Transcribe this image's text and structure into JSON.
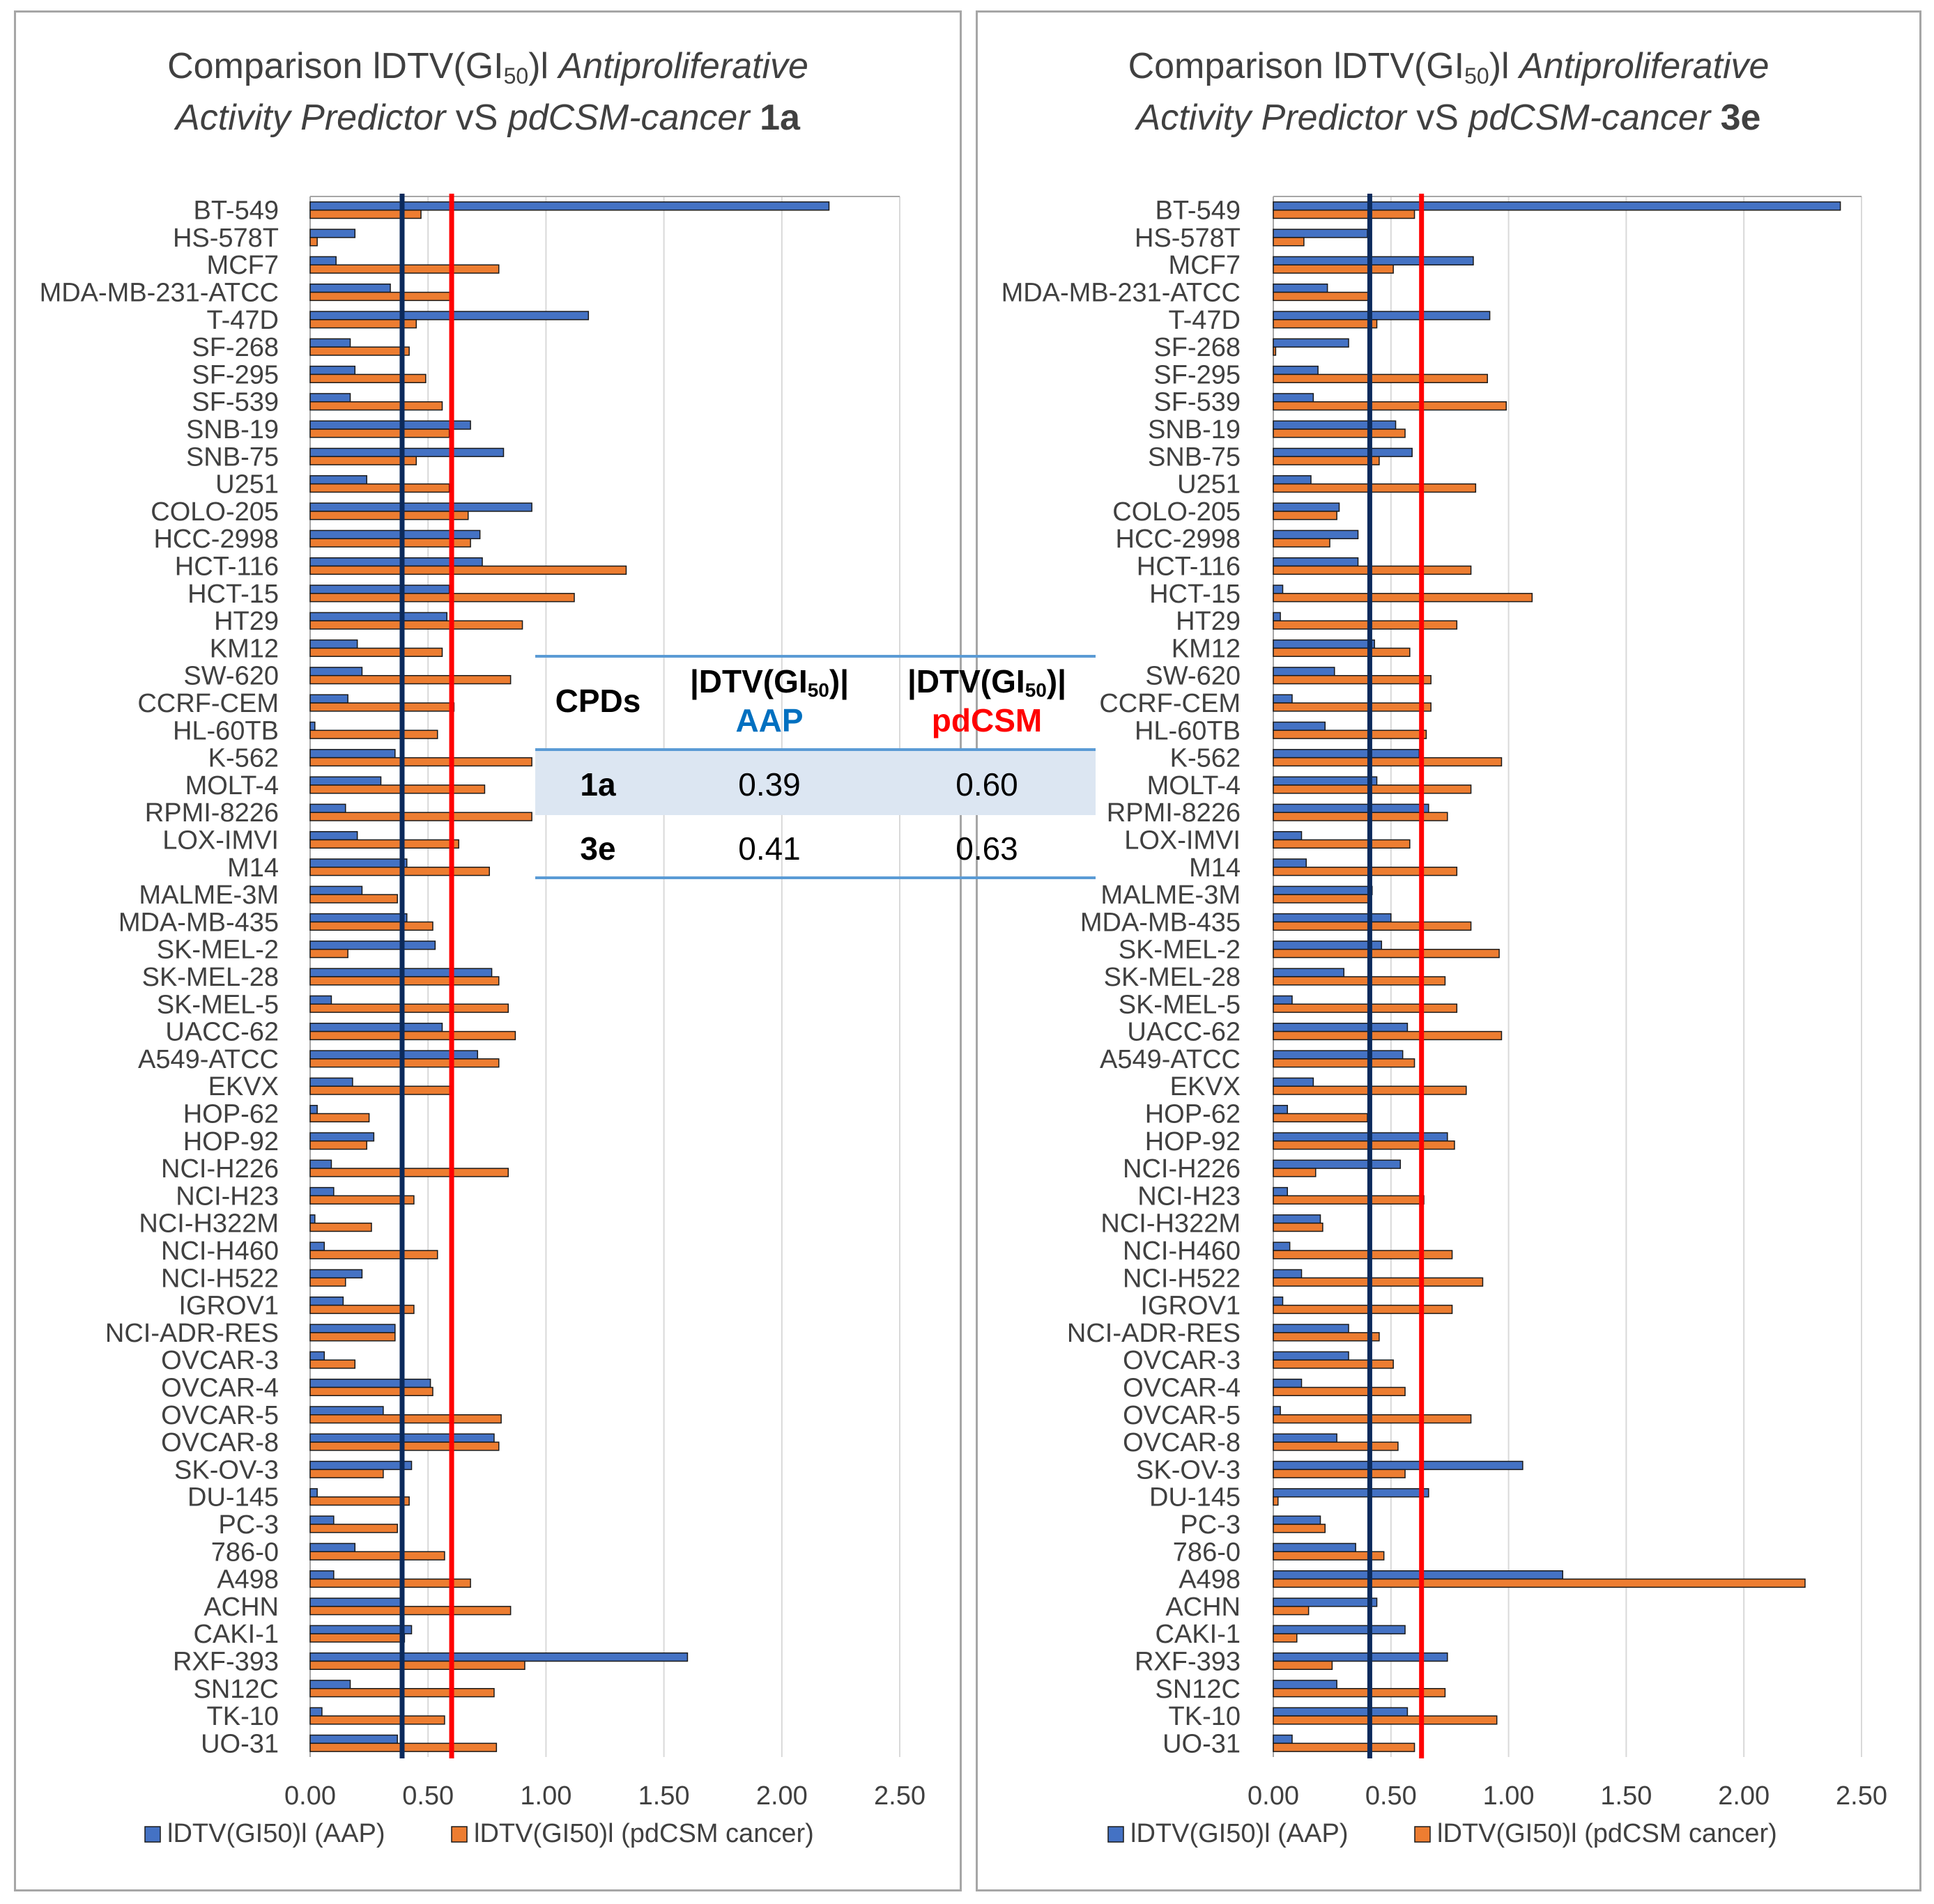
{
  "charts": [
    {
      "title_prefix": "Comparison ",
      "title_dtv": "lDTV(GI",
      "title_sub": "50",
      "title_close": ")l ",
      "title_italic1": "Antiproliferative",
      "title_italic2": "Activity Predictor",
      "title_vs": " vS ",
      "title_italic3": "pdCSM-cancer",
      "title_compound": "1a",
      "legend_aap": "lDTV(GI50)l (AAP)",
      "legend_pdcsm": "lDTV(GI50)l (pdCSM cancer)"
    },
    {
      "title_prefix": "Comparison ",
      "title_dtv": "lDTV(GI",
      "title_sub": "50",
      "title_close": ")l ",
      "title_italic1": "Antiproliferative",
      "title_italic2": "Activity Predictor",
      "title_vs": " vS ",
      "title_italic3": "pdCSM-cancer",
      "title_compound": "3e",
      "legend_aap": "lDTV(GI50)l (AAP)",
      "legend_pdcsm": "lDTV(GI50)l (pdCSM cancer)"
    }
  ],
  "chart_data": [
    {
      "type": "bar",
      "orientation": "horizontal",
      "compound": "1a",
      "xlim": [
        0,
        2.5
      ],
      "xticks": [
        "0.00",
        "0.50",
        "1.00",
        "1.50",
        "2.00",
        "2.50"
      ],
      "categories": [
        "BT-549",
        "HS-578T",
        "MCF7",
        "MDA-MB-231-ATCC",
        "T-47D",
        "SF-268",
        "SF-295",
        "SF-539",
        "SNB-19",
        "SNB-75",
        "U251",
        "COLO-205",
        "HCC-2998",
        "HCT-116",
        "HCT-15",
        "HT29",
        "KM12",
        "SW-620",
        "CCRF-CEM",
        "HL-60TB",
        "K-562",
        "MOLT-4",
        "RPMI-8226",
        "LOX-IMVI",
        "M14",
        "MALME-3M",
        "MDA-MB-435",
        "SK-MEL-2",
        "SK-MEL-28",
        "SK-MEL-5",
        "UACC-62",
        "A549-ATCC",
        "EKVX",
        "HOP-62",
        "HOP-92",
        "NCI-H226",
        "NCI-H23",
        "NCI-H322M",
        "NCI-H460",
        "NCI-H522",
        "IGROV1",
        "NCI-ADR-RES",
        "OVCAR-3",
        "OVCAR-4",
        "OVCAR-5",
        "OVCAR-8",
        "SK-OV-3",
        "DU-145",
        "PC-3",
        "786-0",
        "A498",
        "ACHN",
        "CAKI-1",
        "RXF-393",
        "SN12C",
        "TK-10",
        "UO-31"
      ],
      "series": [
        {
          "name": "lDTV(GI50)l (AAP)",
          "color": "#4472c4",
          "values": [
            2.2,
            0.19,
            0.11,
            0.34,
            1.18,
            0.17,
            0.19,
            0.17,
            0.68,
            0.82,
            0.24,
            0.94,
            0.72,
            0.73,
            0.59,
            0.58,
            0.2,
            0.22,
            0.16,
            0.02,
            0.36,
            0.3,
            0.15,
            0.2,
            0.41,
            0.22,
            0.41,
            0.53,
            0.77,
            0.09,
            0.56,
            0.71,
            0.18,
            0.03,
            0.27,
            0.09,
            0.1,
            0.02,
            0.06,
            0.22,
            0.14,
            0.36,
            0.06,
            0.51,
            0.31,
            0.78,
            0.43,
            0.03,
            0.1,
            0.19,
            0.1,
            0.39,
            0.43,
            1.6,
            0.17,
            0.05,
            0.37
          ]
        },
        {
          "name": "lDTV(GI50)l (pdCSM cancer)",
          "color": "#ed7d31",
          "values": [
            0.47,
            0.03,
            0.8,
            0.6,
            0.45,
            0.42,
            0.49,
            0.56,
            0.59,
            0.45,
            0.59,
            0.67,
            0.68,
            1.34,
            1.12,
            0.9,
            0.56,
            0.85,
            0.61,
            0.54,
            0.94,
            0.74,
            0.94,
            0.63,
            0.76,
            0.37,
            0.52,
            0.16,
            0.8,
            0.84,
            0.87,
            0.8,
            0.6,
            0.25,
            0.24,
            0.84,
            0.44,
            0.26,
            0.54,
            0.15,
            0.44,
            0.36,
            0.19,
            0.52,
            0.81,
            0.8,
            0.31,
            0.42,
            0.37,
            0.57,
            0.68,
            0.85,
            0.4,
            0.91,
            0.78,
            0.57,
            0.79
          ]
        }
      ],
      "reference_lines": [
        {
          "name": "AAP mean",
          "value": 0.39,
          "color": "#0b2a5c"
        },
        {
          "name": "pdCSM mean",
          "value": 0.6,
          "color": "#ff0000"
        }
      ]
    },
    {
      "type": "bar",
      "orientation": "horizontal",
      "compound": "3e",
      "xlim": [
        0,
        2.5
      ],
      "xticks": [
        "0.00",
        "0.50",
        "1.00",
        "1.50",
        "2.00",
        "2.50"
      ],
      "categories": [
        "BT-549",
        "HS-578T",
        "MCF7",
        "MDA-MB-231-ATCC",
        "T-47D",
        "SF-268",
        "SF-295",
        "SF-539",
        "SNB-19",
        "SNB-75",
        "U251",
        "COLO-205",
        "HCC-2998",
        "HCT-116",
        "HCT-15",
        "HT29",
        "KM12",
        "SW-620",
        "CCRF-CEM",
        "HL-60TB",
        "K-562",
        "MOLT-4",
        "RPMI-8226",
        "LOX-IMVI",
        "M14",
        "MALME-3M",
        "MDA-MB-435",
        "SK-MEL-2",
        "SK-MEL-28",
        "SK-MEL-5",
        "UACC-62",
        "A549-ATCC",
        "EKVX",
        "HOP-62",
        "HOP-92",
        "NCI-H226",
        "NCI-H23",
        "NCI-H322M",
        "NCI-H460",
        "NCI-H522",
        "IGROV1",
        "NCI-ADR-RES",
        "OVCAR-3",
        "OVCAR-4",
        "OVCAR-5",
        "OVCAR-8",
        "SK-OV-3",
        "DU-145",
        "PC-3",
        "786-0",
        "A498",
        "ACHN",
        "CAKI-1",
        "RXF-393",
        "SN12C",
        "TK-10",
        "UO-31"
      ],
      "series": [
        {
          "name": "lDTV(GI50)l (AAP)",
          "color": "#4472c4",
          "values": [
            2.41,
            0.4,
            0.85,
            0.23,
            0.92,
            0.32,
            0.19,
            0.17,
            0.52,
            0.59,
            0.16,
            0.28,
            0.36,
            0.36,
            0.04,
            0.03,
            0.43,
            0.26,
            0.08,
            0.22,
            0.62,
            0.44,
            0.66,
            0.12,
            0.14,
            0.42,
            0.5,
            0.46,
            0.3,
            0.08,
            0.57,
            0.55,
            0.17,
            0.06,
            0.74,
            0.54,
            0.06,
            0.2,
            0.07,
            0.12,
            0.04,
            0.32,
            0.32,
            0.12,
            0.03,
            0.27,
            1.06,
            0.66,
            0.2,
            0.35,
            1.23,
            0.44,
            0.56,
            0.74,
            0.27,
            0.57,
            0.08
          ]
        },
        {
          "name": "lDTV(GI50)l (pdCSM cancer)",
          "color": "#ed7d31",
          "values": [
            0.6,
            0.13,
            0.51,
            0.41,
            0.44,
            0.01,
            0.91,
            0.99,
            0.56,
            0.45,
            0.86,
            0.27,
            0.24,
            0.84,
            1.1,
            0.78,
            0.58,
            0.67,
            0.67,
            0.65,
            0.97,
            0.84,
            0.74,
            0.58,
            0.78,
            0.41,
            0.84,
            0.96,
            0.73,
            0.78,
            0.97,
            0.6,
            0.82,
            0.4,
            0.77,
            0.18,
            0.64,
            0.21,
            0.76,
            0.89,
            0.76,
            0.45,
            0.51,
            0.56,
            0.84,
            0.53,
            0.56,
            0.02,
            0.22,
            0.47,
            2.26,
            0.15,
            0.1,
            0.25,
            0.73,
            0.95,
            0.6
          ]
        }
      ],
      "reference_lines": [
        {
          "name": "AAP mean",
          "value": 0.41,
          "color": "#0b2a5c"
        },
        {
          "name": "pdCSM mean",
          "value": 0.63,
          "color": "#ff0000"
        }
      ]
    }
  ],
  "summary_table": {
    "header_cpds": "CPDs",
    "header_dtv": "|DTV(GI",
    "header_sub": "50",
    "header_close": ")|",
    "header_aap": "AAP",
    "header_pdcsm": "pdCSM",
    "aap_color": "#0070c0",
    "pdcsm_color": "#ff0000",
    "rows": [
      {
        "cpd": "1a",
        "aap": "0.39",
        "pdcsm": "0.60"
      },
      {
        "cpd": "3e",
        "aap": "0.41",
        "pdcsm": "0.63"
      }
    ]
  }
}
